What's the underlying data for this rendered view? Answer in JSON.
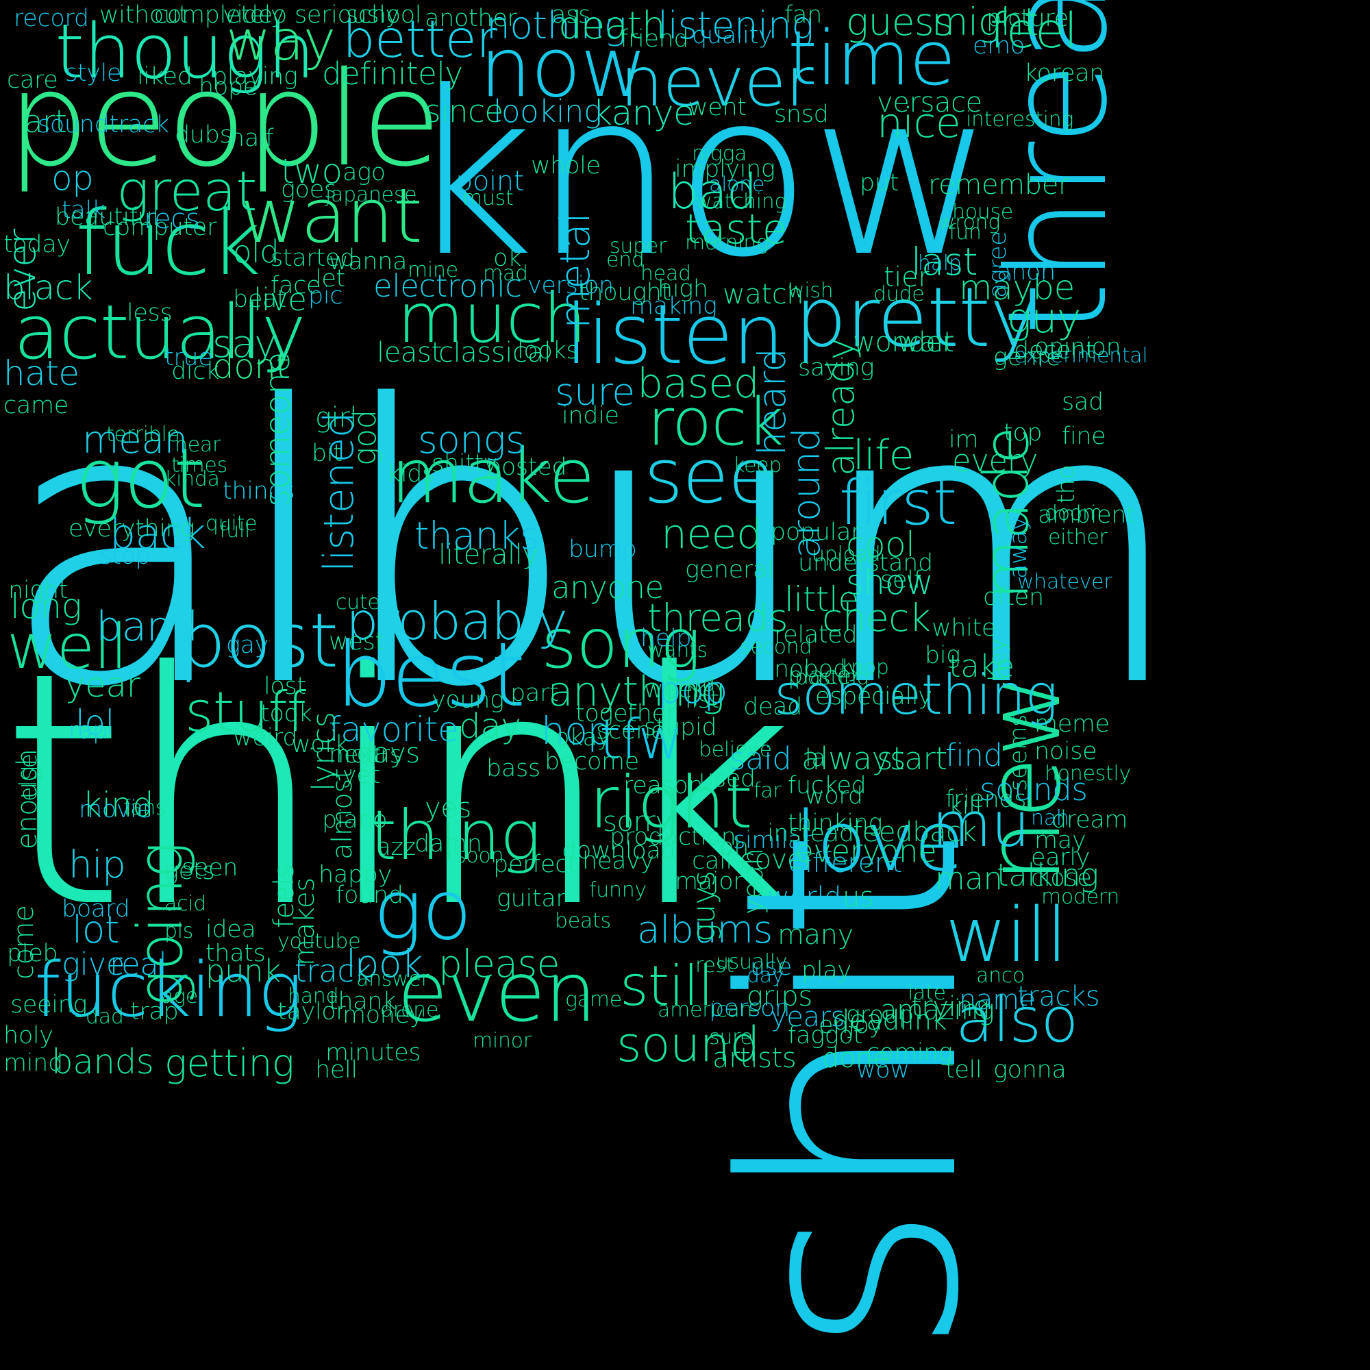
{
  "title": "",
  "palette": [
    "#1de9b6",
    "#19e3a0",
    "#2ee88a",
    "#1fd0e6",
    "#18c9ea",
    "#35e36a",
    "#22b8e0"
  ],
  "words": [
    {
      "text": "album"
    },
    {
      "text": "know"
    },
    {
      "text": "think"
    },
    {
      "text": "shit"
    },
    {
      "text": "people"
    },
    {
      "text": "now"
    },
    {
      "text": "time"
    },
    {
      "text": "never"
    },
    {
      "text": "though"
    },
    {
      "text": "fuck"
    },
    {
      "text": "want"
    },
    {
      "text": "listen"
    },
    {
      "text": "pretty"
    },
    {
      "text": "much"
    },
    {
      "text": "actually"
    },
    {
      "text": "best"
    },
    {
      "text": "post"
    },
    {
      "text": "even"
    },
    {
      "text": "fucking"
    },
    {
      "text": "make"
    },
    {
      "text": "got"
    },
    {
      "text": "see"
    },
    {
      "text": "love"
    },
    {
      "text": "will"
    },
    {
      "text": "new"
    },
    {
      "text": "also"
    },
    {
      "text": "going"
    },
    {
      "text": "go"
    },
    {
      "text": "right"
    },
    {
      "text": "thing"
    },
    {
      "text": "song"
    },
    {
      "text": "first"
    },
    {
      "text": "rock"
    },
    {
      "text": "thread"
    },
    {
      "text": "way"
    },
    {
      "text": "better"
    },
    {
      "text": "great"
    },
    {
      "text": "well"
    },
    {
      "text": "stuff"
    },
    {
      "text": "something"
    },
    {
      "text": "probably"
    },
    {
      "text": "tfw"
    },
    {
      "text": "mu"
    },
    {
      "text": "still"
    },
    {
      "text": "sound"
    },
    {
      "text": "metal"
    },
    {
      "text": "guess"
    },
    {
      "text": "might"
    },
    {
      "text": "feel"
    },
    {
      "text": "nothing"
    },
    {
      "text": "death"
    },
    {
      "text": "listening"
    },
    {
      "text": "bad"
    },
    {
      "text": "taste"
    },
    {
      "text": "nice"
    },
    {
      "text": "last"
    },
    {
      "text": "maybe"
    },
    {
      "text": "guy"
    },
    {
      "text": "based"
    },
    {
      "text": "need"
    },
    {
      "text": "songs"
    },
    {
      "text": "thanks"
    },
    {
      "text": "mean"
    },
    {
      "text": "back"
    },
    {
      "text": "band"
    },
    {
      "text": "bands"
    },
    {
      "text": "getting"
    },
    {
      "text": "albums"
    },
    {
      "text": "anything"
    },
    {
      "text": "pop"
    },
    {
      "text": "hop"
    },
    {
      "text": "threads"
    },
    {
      "text": "check"
    },
    {
      "text": "kanye"
    },
    {
      "text": "say"
    },
    {
      "text": "black"
    },
    {
      "text": "old"
    },
    {
      "text": "definitely"
    },
    {
      "text": "electronic"
    },
    {
      "text": "please"
    },
    {
      "text": "look"
    },
    {
      "text": "punk"
    },
    {
      "text": "track"
    },
    {
      "text": "real"
    },
    {
      "text": "give"
    },
    {
      "text": "hip"
    },
    {
      "text": "lot"
    },
    {
      "text": "kind"
    },
    {
      "text": "year"
    },
    {
      "text": "lol"
    },
    {
      "text": "long"
    },
    {
      "text": "hate"
    },
    {
      "text": "art"
    },
    {
      "text": "op"
    },
    {
      "text": "ever"
    },
    {
      "text": "two"
    },
    {
      "text": "since"
    },
    {
      "text": "looking"
    },
    {
      "text": "point"
    },
    {
      "text": "heard"
    },
    {
      "text": "around"
    },
    {
      "text": "already"
    },
    {
      "text": "made"
    },
    {
      "text": "cool"
    },
    {
      "text": "show"
    },
    {
      "text": "life"
    },
    {
      "text": "every"
    },
    {
      "text": "little"
    },
    {
      "text": "dont"
    },
    {
      "text": "live"
    },
    {
      "text": "sure"
    },
    {
      "text": "someone"
    },
    {
      "text": "listened"
    },
    {
      "text": "god"
    },
    {
      "text": "girl"
    },
    {
      "text": "bit"
    },
    {
      "text": "least"
    },
    {
      "text": "classical"
    },
    {
      "text": "looks"
    },
    {
      "text": "indie"
    },
    {
      "text": "anyone"
    },
    {
      "text": "bump"
    },
    {
      "text": "favorite"
    },
    {
      "text": "day"
    },
    {
      "text": "literally"
    },
    {
      "text": "said"
    },
    {
      "text": "always"
    },
    {
      "text": "start"
    },
    {
      "text": "find"
    },
    {
      "text": "take"
    },
    {
      "text": "sounds"
    },
    {
      "text": "talking"
    },
    {
      "text": "man"
    },
    {
      "text": "tracks"
    },
    {
      "text": "name"
    },
    {
      "text": "trying"
    },
    {
      "text": "deadlink"
    },
    {
      "text": "years"
    },
    {
      "text": "us"
    },
    {
      "text": "feedback"
    },
    {
      "text": "everyone"
    },
    {
      "text": "guys"
    },
    {
      "text": "different"
    },
    {
      "text": "oh"
    },
    {
      "text": "cover"
    },
    {
      "text": "yeah"
    },
    {
      "text": "world"
    },
    {
      "text": "many"
    },
    {
      "text": "play"
    },
    {
      "text": "use"
    },
    {
      "text": "grips"
    },
    {
      "text": "person"
    },
    {
      "text": "artists"
    },
    {
      "text": "done"
    },
    {
      "text": "coming"
    },
    {
      "text": "amazing"
    },
    {
      "text": "enjoy"
    },
    {
      "text": "faggot"
    },
    {
      "text": "wow"
    },
    {
      "text": "tell"
    },
    {
      "text": "gonna"
    },
    {
      "text": "wanna"
    },
    {
      "text": "started"
    },
    {
      "text": "pic"
    },
    {
      "text": "night"
    },
    {
      "text": "come"
    },
    {
      "text": "board"
    },
    {
      "text": "rap"
    },
    {
      "text": "enough"
    },
    {
      "text": "else"
    },
    {
      "text": "things"
    },
    {
      "text": "stop"
    },
    {
      "text": "everything"
    },
    {
      "text": "makes"
    },
    {
      "text": "shitty"
    },
    {
      "text": "almost"
    },
    {
      "text": "feels"
    },
    {
      "text": "lyrics"
    },
    {
      "text": "next"
    },
    {
      "text": "days"
    },
    {
      "text": "found"
    },
    {
      "text": "jazz"
    },
    {
      "text": "yes"
    },
    {
      "text": "perfect"
    },
    {
      "text": "guitar"
    },
    {
      "text": "sorry"
    },
    {
      "text": "heavy"
    },
    {
      "text": "reason"
    },
    {
      "text": "used"
    },
    {
      "text": "fucked"
    },
    {
      "text": "call"
    },
    {
      "text": "similar"
    },
    {
      "text": "major"
    },
    {
      "text": "word"
    },
    {
      "text": "instead"
    },
    {
      "text": "thinking"
    },
    {
      "text": "group"
    },
    {
      "text": "friends"
    },
    {
      "text": "close"
    },
    {
      "text": "may"
    },
    {
      "text": "early"
    },
    {
      "text": "dream"
    },
    {
      "text": "kill"
    },
    {
      "text": "seems"
    },
    {
      "text": "noise"
    },
    {
      "text": "meme"
    },
    {
      "text": "hey"
    },
    {
      "text": "white"
    },
    {
      "text": "big"
    },
    {
      "text": "place"
    },
    {
      "text": "nobody"
    },
    {
      "text": "especially"
    },
    {
      "text": "week"
    },
    {
      "text": "together"
    },
    {
      "text": "scene"
    },
    {
      "text": "become"
    },
    {
      "text": "bass"
    },
    {
      "text": "young"
    },
    {
      "text": "hours"
    },
    {
      "text": "yet"
    },
    {
      "text": "work"
    },
    {
      "text": "piano"
    },
    {
      "text": "happy"
    },
    {
      "text": "damn"
    },
    {
      "text": "part"
    },
    {
      "text": "thank"
    },
    {
      "text": "minutes"
    },
    {
      "text": "money"
    },
    {
      "text": "taylor"
    },
    {
      "text": "hell"
    },
    {
      "text": "holy"
    },
    {
      "text": "mind"
    },
    {
      "text": "trap"
    },
    {
      "text": "seeing"
    },
    {
      "text": "pleb"
    },
    {
      "text": "thats"
    },
    {
      "text": "idea"
    },
    {
      "text": "seen"
    },
    {
      "text": "gets"
    },
    {
      "text": "took"
    },
    {
      "text": "lost"
    },
    {
      "text": "weird"
    },
    {
      "text": "goes"
    },
    {
      "text": "talk"
    },
    {
      "text": "computer"
    },
    {
      "text": "recs"
    },
    {
      "text": "ago"
    },
    {
      "text": "japanese"
    },
    {
      "text": "must"
    },
    {
      "text": "whole"
    },
    {
      "text": "implying"
    },
    {
      "text": "watching"
    },
    {
      "text": "alone"
    },
    {
      "text": "morning"
    },
    {
      "text": "nigga"
    },
    {
      "text": "went"
    },
    {
      "text": "snsd"
    },
    {
      "text": "versace"
    },
    {
      "text": "interesting"
    },
    {
      "text": "remember"
    },
    {
      "text": "wrong"
    },
    {
      "text": "put"
    },
    {
      "text": "house"
    },
    {
      "text": "fun"
    },
    {
      "text": "halp"
    },
    {
      "text": "tier"
    },
    {
      "text": "dude"
    },
    {
      "text": "wish"
    },
    {
      "text": "agree"
    },
    {
      "text": "anon"
    },
    {
      "text": "experimental"
    },
    {
      "text": "genre"
    },
    {
      "text": "decent"
    },
    {
      "text": "opinion"
    },
    {
      "text": "ambient"
    },
    {
      "text": "sad"
    },
    {
      "text": "fine"
    },
    {
      "text": "top"
    },
    {
      "text": "im"
    },
    {
      "text": "tho"
    },
    {
      "text": "doom"
    },
    {
      "text": "either"
    },
    {
      "text": "away"
    },
    {
      "text": "whatever"
    },
    {
      "text": "self"
    },
    {
      "text": "often"
    },
    {
      "text": "understand"
    },
    {
      "text": "upload"
    },
    {
      "text": "popular"
    },
    {
      "text": "general"
    },
    {
      "text": "dead"
    },
    {
      "text": "keep"
    },
    {
      "text": "kids"
    },
    {
      "text": "posted"
    },
    {
      "text": "believe"
    },
    {
      "text": "kpop"
    },
    {
      "text": "related"
    },
    {
      "text": "posting"
    },
    {
      "text": "wants"
    },
    {
      "text": "help"
    },
    {
      "text": "gay"
    },
    {
      "text": "west"
    },
    {
      "text": "cute"
    },
    {
      "text": "kid"
    },
    {
      "text": "list"
    },
    {
      "text": "stupid"
    },
    {
      "text": "okay"
    },
    {
      "text": "production"
    },
    {
      "text": "download"
    },
    {
      "text": "second"
    },
    {
      "text": "far"
    },
    {
      "text": "la"
    },
    {
      "text": "wait"
    },
    {
      "text": "wonder"
    },
    {
      "text": "saying"
    },
    {
      "text": "watch"
    },
    {
      "text": "making"
    },
    {
      "text": "high"
    },
    {
      "text": "thought"
    },
    {
      "text": "version"
    },
    {
      "text": "head"
    },
    {
      "text": "end"
    },
    {
      "text": "super"
    },
    {
      "text": "ok"
    },
    {
      "text": "mad"
    },
    {
      "text": "mine"
    },
    {
      "text": "let"
    },
    {
      "text": "face"
    },
    {
      "text": "beat"
    },
    {
      "text": "less"
    },
    {
      "text": "true"
    },
    {
      "text": "dick"
    },
    {
      "text": "came"
    },
    {
      "text": "today"
    },
    {
      "text": "beautiful"
    },
    {
      "text": "care"
    },
    {
      "text": "style"
    },
    {
      "text": "liked"
    },
    {
      "text": "hope"
    },
    {
      "text": "playing"
    },
    {
      "text": "record"
    },
    {
      "text": "without"
    },
    {
      "text": "completely"
    },
    {
      "text": "video"
    },
    {
      "text": "seriously"
    },
    {
      "text": "school"
    },
    {
      "text": "another"
    },
    {
      "text": "ass"
    },
    {
      "text": "friend"
    },
    {
      "text": "quality"
    },
    {
      "text": "fan"
    },
    {
      "text": "emo"
    },
    {
      "text": "korean"
    },
    {
      "text": "picture"
    },
    {
      "text": "dubs"
    },
    {
      "text": "half"
    },
    {
      "text": "soundtrack"
    },
    {
      "text": "terrible"
    },
    {
      "text": "times"
    },
    {
      "text": "kinda"
    },
    {
      "text": "hear"
    },
    {
      "text": "full"
    },
    {
      "text": "quite"
    },
    {
      "text": "movie"
    },
    {
      "text": "fans"
    },
    {
      "text": "acid"
    },
    {
      "text": "pls"
    },
    {
      "text": "youtube"
    },
    {
      "text": "hand"
    },
    {
      "text": "age"
    },
    {
      "text": "dad"
    },
    {
      "text": "drone"
    },
    {
      "text": "answer"
    },
    {
      "text": "minor"
    },
    {
      "text": "game"
    },
    {
      "text": "american"
    },
    {
      "text": "rest"
    },
    {
      "text": "usually"
    },
    {
      "text": "sure"
    },
    {
      "text": "day"
    },
    {
      "text": "late"
    },
    {
      "text": "anco"
    },
    {
      "text": "beats"
    },
    {
      "text": "nah"
    },
    {
      "text": "funny"
    },
    {
      "text": "soon"
    },
    {
      "text": "modern"
    },
    {
      "text": "honestly"
    },
    {
      "text": "power"
    },
    {
      "text": "red"
    },
    {
      "text": "try"
    },
    {
      "text": "pretty"
    },
    {
      "text": "ended"
    },
    {
      "text": "pathetic"
    }
  ]
}
